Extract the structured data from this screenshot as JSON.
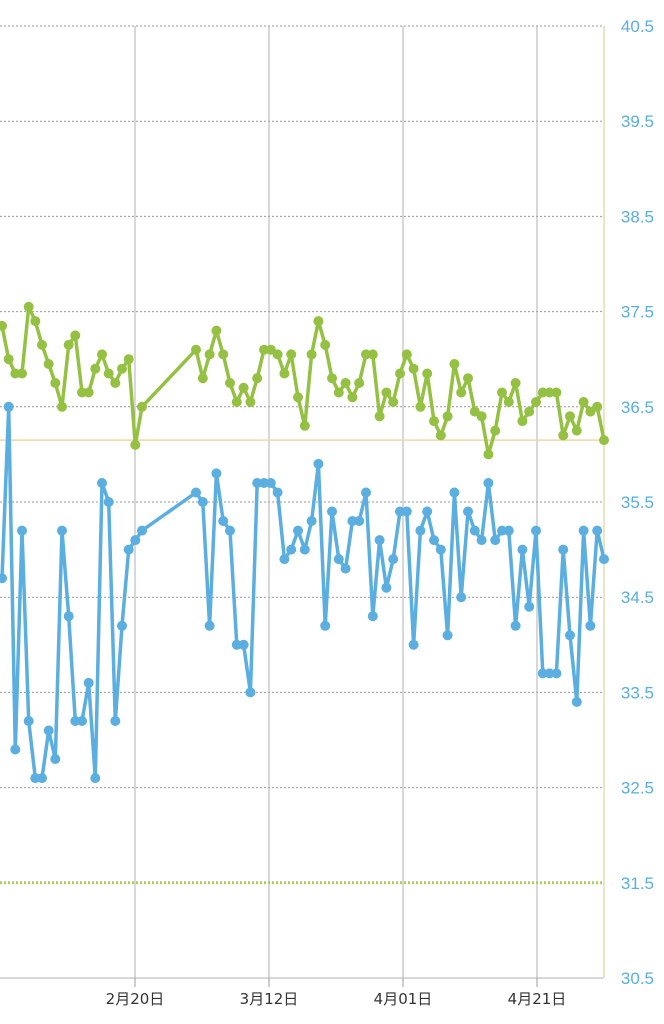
{
  "colors": {
    "series_upper": "#94c142",
    "series_lower": "#5aaee0",
    "reference_line": "#efd6a8",
    "baseline_dotted": "#a8d060",
    "ytick_text": "#5aaee0"
  },
  "chart_data": {
    "type": "line",
    "title": "",
    "xlabel": "",
    "ylabel": "",
    "x_ticks": [
      "2月20日",
      "3月12日",
      "4月01日",
      "4月21日"
    ],
    "y_ticks": [
      "40.5",
      "39.5",
      "38.5",
      "37.5",
      "36.5",
      "35.5",
      "34.5",
      "33.5",
      "32.5",
      "31.5",
      "30.5"
    ],
    "ylim": [
      30.5,
      40.5
    ],
    "y_axis_side": "right",
    "grid": true,
    "legend": "none",
    "reference_lines": [
      {
        "value": 36.15,
        "style": "solid"
      },
      {
        "value": 31.5,
        "style": "dotted"
      }
    ],
    "series": [
      {
        "values": [
          37.35,
          37.0,
          36.85,
          36.85,
          37.55,
          37.4,
          37.15,
          36.95,
          36.75,
          36.5,
          37.15,
          37.25,
          36.65,
          36.65,
          36.9,
          37.05,
          36.85,
          36.75,
          36.9,
          37.0,
          36.1,
          36.5,
          37.1,
          36.8,
          37.05,
          37.3,
          37.05,
          36.75,
          36.55,
          36.7,
          36.55,
          36.8,
          37.1,
          37.1,
          37.05,
          36.85,
          37.05,
          36.6,
          36.3,
          37.05,
          37.4,
          37.15,
          36.8,
          36.65,
          36.75,
          36.6,
          36.75,
          37.05,
          37.05,
          36.4,
          36.65,
          36.55,
          36.85,
          37.05,
          36.9,
          36.5,
          36.85,
          36.35,
          36.2,
          36.4,
          36.95,
          36.65,
          36.8,
          36.45,
          36.4,
          36.0,
          36.25,
          36.65,
          36.55,
          36.75,
          36.35,
          36.45,
          36.55,
          36.65,
          36.65,
          36.65,
          36.2,
          36.4,
          36.25,
          36.55,
          36.45,
          36.5,
          36.15
        ]
      },
      {
        "values": [
          34.7,
          36.5,
          32.9,
          35.2,
          33.2,
          32.6,
          32.6,
          33.1,
          32.8,
          35.2,
          34.3,
          33.2,
          33.2,
          33.6,
          32.6,
          35.7,
          35.5,
          33.2,
          34.2,
          35.0,
          35.1,
          35.2,
          35.6,
          35.5,
          34.2,
          35.8,
          35.3,
          35.2,
          34.0,
          34.0,
          33.5,
          35.7,
          35.7,
          35.7,
          35.6,
          34.9,
          35.0,
          35.2,
          35.0,
          35.3,
          35.9,
          34.2,
          35.4,
          34.9,
          34.8,
          35.3,
          35.3,
          35.6,
          34.3,
          35.1,
          34.6,
          34.9,
          35.4,
          35.4,
          34.0,
          35.2,
          35.4,
          35.1,
          35.0,
          34.1,
          35.6,
          34.5,
          35.4,
          35.2,
          35.1,
          35.7,
          35.1,
          35.2,
          35.2,
          34.2,
          35.0,
          34.4,
          35.2,
          33.7,
          33.7,
          33.7,
          35.0,
          34.1,
          33.4,
          35.2,
          34.2,
          35.2,
          34.9
        ]
      }
    ]
  }
}
